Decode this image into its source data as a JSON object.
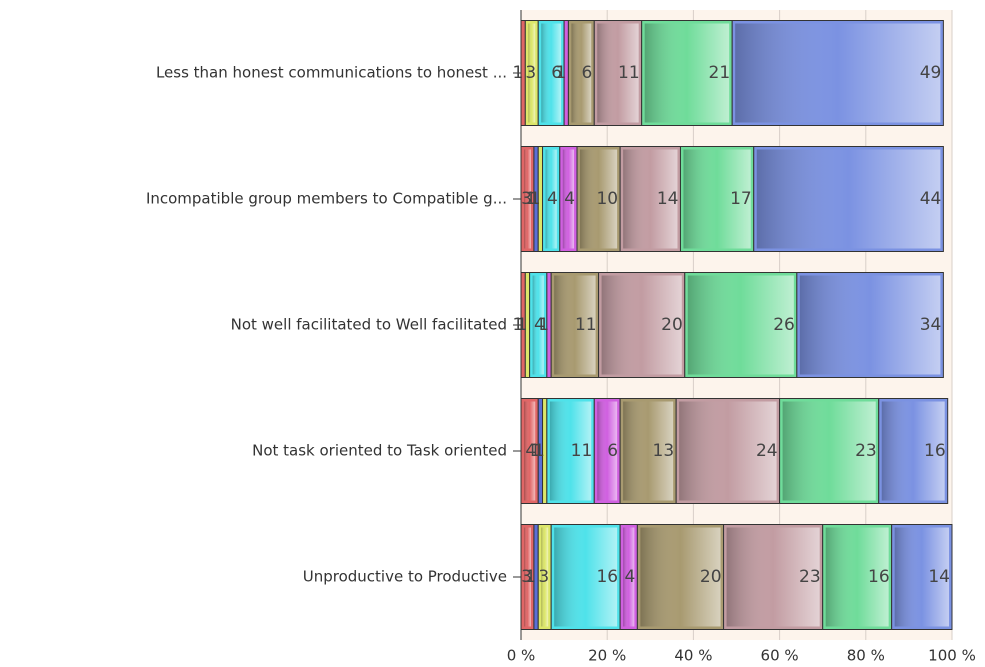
{
  "chart_data": {
    "type": "stacked_barh",
    "categories": [
      "Less than honest communications to honest  ...",
      "Incompatible group members to Compatible g...",
      "Not well facilitated to Well facilitated",
      "Not task oriented to Task oriented",
      "Unproductive to Productive"
    ],
    "series": [
      {
        "color": "#e06666",
        "values": [
          1,
          3,
          1,
          4,
          3
        ]
      },
      {
        "color": "#5b6fd6",
        "values": [
          0,
          1,
          0,
          1,
          1
        ]
      },
      {
        "color": "#dce66a",
        "values": [
          3,
          1,
          1,
          1,
          3
        ]
      },
      {
        "color": "#4fe2ea",
        "values": [
          6,
          4,
          4,
          11,
          16
        ]
      },
      {
        "color": "#d060e0",
        "values": [
          1,
          4,
          1,
          6,
          4
        ]
      },
      {
        "color": "#a89a70",
        "values": [
          6,
          10,
          11,
          13,
          20
        ]
      },
      {
        "color": "#c29ca2",
        "values": [
          11,
          14,
          20,
          24,
          23
        ]
      },
      {
        "color": "#6fdc9a",
        "values": [
          21,
          17,
          26,
          23,
          16
        ]
      },
      {
        "color": "#7b92e2",
        "values": [
          49,
          44,
          34,
          16,
          14
        ]
      }
    ],
    "xlim": [
      0,
      100
    ],
    "xticks": [
      {
        "value": 0,
        "label": "0 %"
      },
      {
        "value": 20,
        "label": "20 %"
      },
      {
        "value": 40,
        "label": "40 %"
      },
      {
        "value": 60,
        "label": "60 %"
      },
      {
        "value": 80,
        "label": "80 %"
      },
      {
        "value": 100,
        "label": "100 %"
      }
    ],
    "grid": true
  }
}
